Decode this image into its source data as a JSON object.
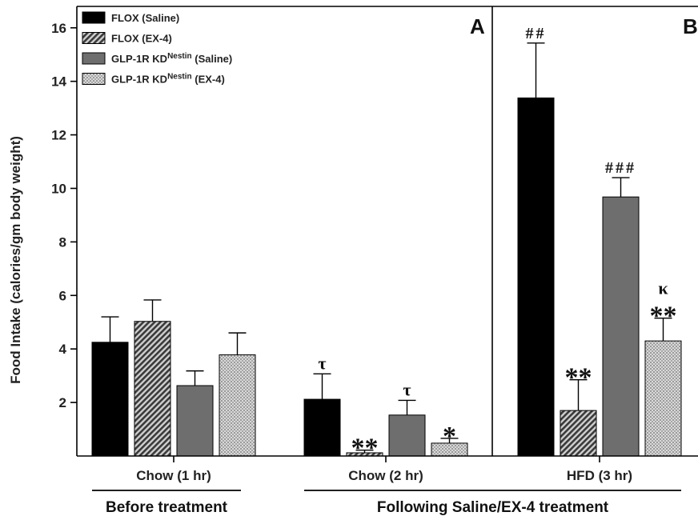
{
  "chart_data": {
    "type": "bar",
    "ylabel": "Food Intake (calories/gm body weight)",
    "ylim": [
      0,
      16.8
    ],
    "yticks": [
      2,
      4,
      6,
      8,
      10,
      12,
      14,
      16
    ],
    "panel_labels": [
      "A",
      "B"
    ],
    "categories": [
      "Chow (1 hr)",
      "Chow (2 hr)",
      "HFD (3 hr)"
    ],
    "groups": [
      {
        "label": "Before treatment",
        "categories": [
          "Chow (1 hr)"
        ]
      },
      {
        "label": "Following Saline/EX-4 treatment",
        "categories": [
          "Chow (2 hr)",
          "HFD (3 hr)"
        ]
      }
    ],
    "series": [
      {
        "name": "FLOX (Saline)",
        "legend_main": "FLOX (Saline)",
        "legend_sup": "",
        "legend_tail": "",
        "fill": "#000000",
        "pattern": "solid",
        "values": [
          4.25,
          2.12,
          13.38
        ],
        "errors": [
          0.95,
          0.95,
          2.05
        ],
        "annotations": [
          "",
          "τ",
          "##"
        ]
      },
      {
        "name": "FLOX (EX-4)",
        "legend_main": "FLOX (EX-4)",
        "legend_sup": "",
        "legend_tail": "",
        "fill": "#555555",
        "pattern": "hatch",
        "values": [
          5.03,
          0.12,
          1.7
        ],
        "errors": [
          0.8,
          0.1,
          1.15
        ],
        "annotations": [
          "",
          "**",
          "**"
        ]
      },
      {
        "name": "GLP-1R KDNestin (Saline)",
        "legend_main": "GLP-1R KD",
        "legend_sup": "Nestin",
        "legend_tail": " (Saline)",
        "fill": "#6e6e6e",
        "pattern": "solid",
        "values": [
          2.63,
          1.53,
          9.68
        ],
        "errors": [
          0.55,
          0.55,
          0.72
        ],
        "annotations": [
          "",
          "τ",
          "###"
        ]
      },
      {
        "name": "GLP-1R KDNestin (EX-4)",
        "legend_main": "GLP-1R KD",
        "legend_sup": "Nestin",
        "legend_tail": " (EX-4)",
        "fill": "#b5b5b5",
        "pattern": "dots",
        "values": [
          3.78,
          0.48,
          4.3
        ],
        "errors": [
          0.82,
          0.18,
          0.85
        ],
        "annotations": [
          "",
          "*",
          "κ\n**"
        ]
      }
    ]
  }
}
